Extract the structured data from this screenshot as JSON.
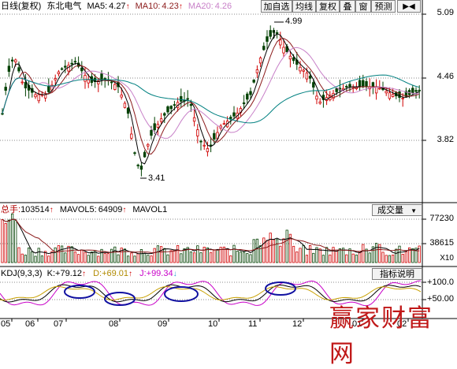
{
  "price_panel": {
    "period": "日线(复权)",
    "stock_name": "东北电气",
    "ma5": {
      "label": "MA5:",
      "value": "4.27",
      "color": "#000000"
    },
    "ma10": {
      "label": "MA10:",
      "value": "4.23",
      "color": "#8b1a1a"
    },
    "ma20": {
      "label": "MA20:",
      "value": "4.26",
      "color": "#c880c8"
    },
    "arrow_up": "↑",
    "axis": [
      "5.09",
      "4.46",
      "3.82"
    ],
    "annotation_high": "4.99",
    "annotation_low": "3.41"
  },
  "toolbar": {
    "add_watch": "加自选",
    "ma_line": "均线",
    "rights": "复权",
    "overlay": "叠",
    "window": "窗",
    "forecast": "预测",
    "arrow": "▶◀"
  },
  "volume_panel": {
    "total_label": "总手:",
    "total_value": "103514",
    "mavol5_label": "MAVOL5:",
    "mavol5_value": "64909",
    "mavol1_label": "MAVOL1",
    "selector": "成交量",
    "selector_arrow": "▼",
    "axis": [
      "77230",
      "38615",
      "X10"
    ]
  },
  "kdj_panel": {
    "title": "KDJ(9,3,3)",
    "k_label": "K:",
    "k_value": "+79.12",
    "d_label": "D:",
    "d_value": "+69.01",
    "j_label": "J:",
    "j_value": "+99.34",
    "help_button": "指标说明",
    "axis": [
      "+100.0",
      "+50.00"
    ]
  },
  "x_axis": [
    "05",
    "06",
    "07",
    "08",
    "09",
    "10",
    "11",
    "12",
    "01",
    "02"
  ],
  "watermark": "赢家财富网",
  "colors": {
    "candle_up": "#d00000",
    "candle_down": "#004000",
    "ma5": "#000000",
    "ma10": "#8b1a1a",
    "ma20": "#c880c8",
    "ma60": "#008080",
    "kdj_k": "#000000",
    "kdj_d": "#c8a000",
    "kdj_j": "#c800c8",
    "ellipse": "#1010a0"
  }
}
